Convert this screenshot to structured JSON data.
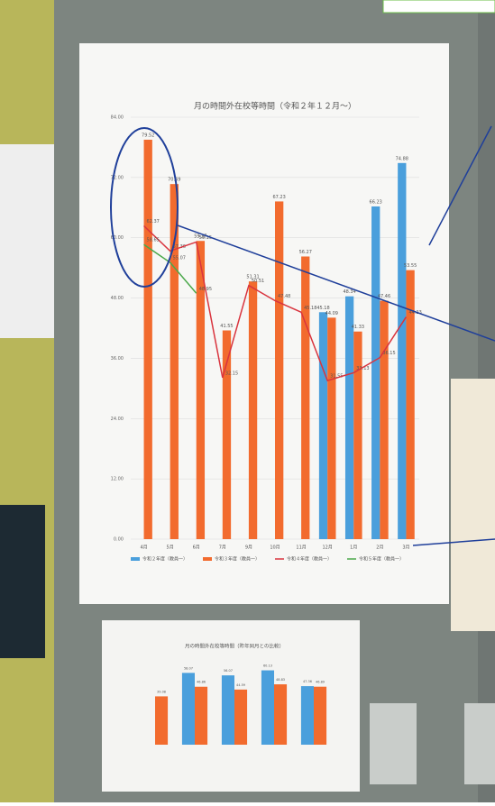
{
  "chart_data": [
    {
      "type": "bar",
      "title": "月の時間外在校等時間（令和２年１２月～）",
      "categories": [
        "4月",
        "5月",
        "6月",
        "7月",
        "9月",
        "10月",
        "11月",
        "12月",
        "1月",
        "2月",
        "3月"
      ],
      "series": [
        {
          "name": "令和２年度（教員一）",
          "color": "#4a9fdc",
          "kind": "bar",
          "values": [
            null,
            null,
            null,
            null,
            null,
            null,
            null,
            45.18,
            48.34,
            66.23,
            74.88
          ]
        },
        {
          "name": "令和３年度（教員一）",
          "color": "#f26b2e",
          "kind": "bar",
          "values": [
            79.52,
            70.69,
            59.37,
            41.55,
            51.31,
            67.23,
            56.27,
            44.09,
            41.33,
            47.46,
            53.55
          ]
        },
        {
          "name": "令和４年度（教員一）",
          "color": "#d9343e",
          "kind": "line",
          "values": [
            62.37,
            57.36,
            59.15,
            32.15,
            50.51,
            47.48,
            45.18,
            31.55,
            33.13,
            36.15,
            44.23
          ]
        },
        {
          "name": "令和５年度（教員一）",
          "color": "#4aa84a",
          "kind": "line",
          "values": [
            58.65,
            55.07,
            48.95,
            null,
            null,
            null,
            null,
            null,
            null,
            null,
            null
          ]
        }
      ],
      "ylim": [
        0,
        84
      ],
      "yticks": [
        {
          "value": 0,
          "label": "0.00"
        },
        {
          "value": 12,
          "label": "12.00"
        },
        {
          "value": 24,
          "label": "24.00"
        },
        {
          "value": 36,
          "label": "36.00"
        },
        {
          "value": 48,
          "label": "48.00"
        },
        {
          "value": 60,
          "label": "60.00"
        },
        {
          "value": 72,
          "label": "72.00"
        },
        {
          "value": 84,
          "label": "84.00"
        }
      ],
      "grid": true,
      "legend": "bottom"
    },
    {
      "type": "bar",
      "title": "月の時間外在校等時間（昨年同月との比較）",
      "categories": [
        null,
        null,
        null,
        null,
        null
      ],
      "series": [
        {
          "color": "#4a9fdc",
          "kind": "bar",
          "values": [
            null,
            58.07,
            56.07,
            60.13,
            47.36
          ]
        },
        {
          "color": "#f26b2e",
          "kind": "bar",
          "values": [
            39.08,
            46.86,
            44.59,
            48.83,
            46.89
          ]
        }
      ],
      "ylim": [
        0,
        70
      ]
    }
  ]
}
